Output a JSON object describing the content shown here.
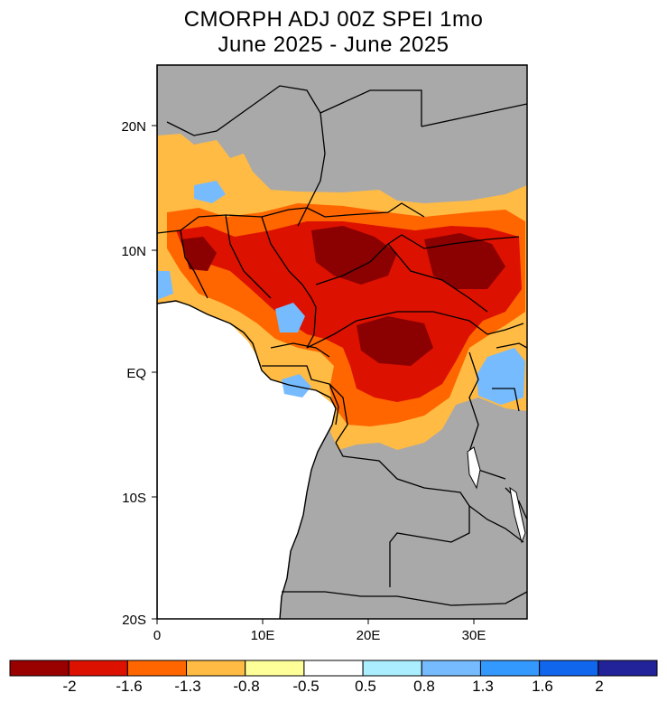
{
  "title_line1": "CMORPH ADJ 00Z SPEI 1mo",
  "title_line2": "June 2025 - June 2025",
  "lat_ticks": [
    "20N",
    "10N",
    "EQ",
    "10S",
    "20S"
  ],
  "lon_ticks": [
    "0",
    "10E",
    "20E",
    "30E"
  ],
  "colorbar": {
    "colors": [
      "#990000",
      "#dd1100",
      "#ff6600",
      "#ffbb44",
      "#ffff99",
      "#ffffff",
      "#aaeeff",
      "#77bbff",
      "#3399ff",
      "#1166ee",
      "#222299"
    ],
    "labels": [
      "-2",
      "-1.6",
      "-1.3",
      "-0.8",
      "-0.5",
      "0.5",
      "0.8",
      "1.3",
      "1.6",
      "2"
    ]
  },
  "map_colors": {
    "land_nodata": "#a9a9a9",
    "ocean": "#ffffff",
    "dry_extreme": "#8b0000",
    "dry_severe": "#dd1100",
    "dry_moderate": "#ff6600",
    "dry_mild": "#ffbb44",
    "dry_slight": "#ffff99",
    "wet_slight": "#aaeeff",
    "wet_mild": "#77bbff",
    "wet_moderate": "#3399ff"
  }
}
